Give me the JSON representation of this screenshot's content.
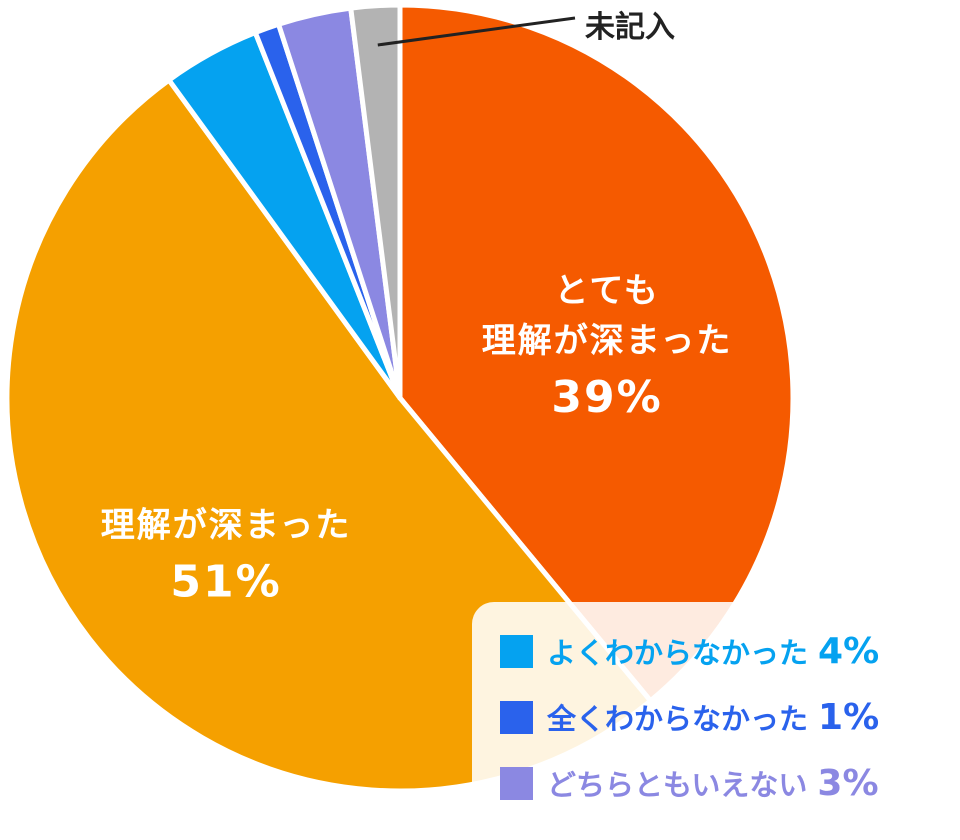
{
  "chart_data": {
    "type": "pie",
    "categories": [
      "とても\n理解が深まった",
      "理解が深まった",
      "よくわからなかった",
      "全くわからなかった",
      "どちらともいえない",
      "未記入"
    ],
    "values": [
      39,
      51,
      4,
      1,
      3,
      2
    ],
    "value_labels": [
      "39%",
      "51%",
      "4%",
      "1%",
      "3%",
      null
    ],
    "colors": [
      "#f55a00",
      "#f5a000",
      "#05a2f0",
      "#2a62ec",
      "#8b88e2",
      "#b3b3b3"
    ]
  }
}
